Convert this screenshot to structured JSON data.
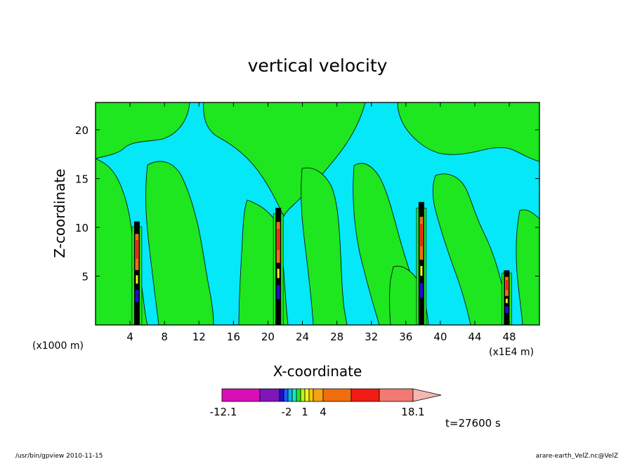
{
  "chart_data": {
    "type": "heatmap",
    "title": "vertical velocity",
    "xlabel": "X-coordinate",
    "ylabel": "Z-coordinate",
    "x_unit_left": "(x1000 m)",
    "x_unit_right": "(x1E4 m)",
    "xlim": [
      0,
      51.5
    ],
    "ylim": [
      0,
      22.8
    ],
    "x_ticks": [
      "4",
      "8",
      "12",
      "16",
      "20",
      "24",
      "28",
      "32",
      "36",
      "40",
      "44",
      "48"
    ],
    "x_tick_values": [
      4,
      8,
      12,
      16,
      20,
      24,
      28,
      32,
      36,
      40,
      44,
      48
    ],
    "y_ticks": [
      "5",
      "10",
      "15",
      "20"
    ],
    "y_tick_values": [
      5,
      10,
      15,
      20
    ],
    "colorbar": {
      "labels": [
        "-12.1",
        "-2",
        "1",
        "4",
        "18.1"
      ],
      "label_values": [
        -12.1,
        -2,
        1,
        4,
        18.1
      ],
      "colors": [
        "#d90fb5",
        "#7f16b8",
        "#1c0dd0",
        "#1f5ef0",
        "#0fb5ee",
        "#19e8c9",
        "#22e52b",
        "#bdf21a",
        "#f8f614",
        "#f6c616",
        "#f6a212",
        "#f06d0f",
        "#f11c13",
        "#f37a72",
        "#f6b7b4"
      ]
    },
    "background_colors": {
      "negative": "#04e8f8",
      "positive": "#1ee61f"
    },
    "updraft_columns": [
      {
        "x": 4.8,
        "top": 10.6
      },
      {
        "x": 21.2,
        "top": 12.0
      },
      {
        "x": 37.8,
        "top": 12.6
      },
      {
        "x": 47.7,
        "top": 5.6
      }
    ],
    "time_label": "t=27600 s"
  },
  "footer": {
    "left": "/usr/bin/gpview   2010-11-15",
    "right": "arare-earth_VelZ.nc@VelZ"
  }
}
